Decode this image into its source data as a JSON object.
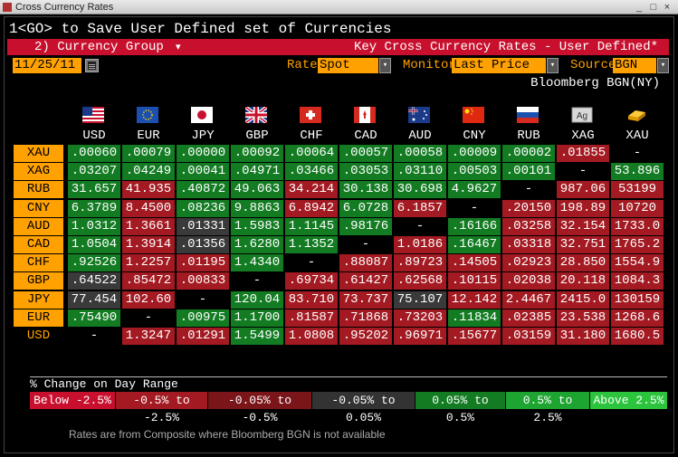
{
  "window": {
    "title": "Cross Currency Rates",
    "controls": [
      "_",
      "□",
      "×"
    ]
  },
  "command_line": "1<GO> to Save User Defined set of Currencies",
  "header_bar": {
    "group_label": "2) Currency Group",
    "group_arrow": "▾",
    "key_title": "Key Cross Currency Rates - User Defined*"
  },
  "controls": {
    "date": "11/25/11",
    "rate_label": "Rate",
    "rate_value": "Spot",
    "monitor_label": "Monitor",
    "monitor_value": "Last Price w/",
    "source_label": "Source",
    "source_value": "BGN",
    "dropdown_glyph": "▾"
  },
  "source_note": "Bloomberg BGN(NY)",
  "columns": [
    "USD",
    "EUR",
    "JPY",
    "GBP",
    "CHF",
    "CAD",
    "AUD",
    "CNY",
    "RUB",
    "XAG",
    "XAU"
  ],
  "column_icons": [
    "us-flag-icon",
    "eu-flag-icon",
    "jp-flag-icon",
    "gb-flag-icon",
    "ch-flag-icon",
    "ca-flag-icon",
    "au-flag-icon",
    "cn-flag-icon",
    "ru-flag-icon",
    "silver-bar-icon",
    "gold-bar-icon"
  ],
  "xag_icon_text": "Ag",
  "rows": [
    {
      "label": "XAU",
      "values": [
        ".00060",
        ".00079",
        ".00000",
        ".00092",
        ".00064",
        ".00057",
        ".00058",
        ".00009",
        ".00002",
        ".01855",
        "-"
      ],
      "colors": [
        "g",
        "g",
        "g",
        "g",
        "g",
        "g",
        "g",
        "g",
        "g",
        "r",
        "n"
      ]
    },
    {
      "label": "XAG",
      "values": [
        ".03207",
        ".04249",
        ".00041",
        ".04971",
        ".03466",
        ".03053",
        ".03110",
        ".00503",
        ".00101",
        "-",
        "53.896"
      ],
      "colors": [
        "g",
        "g",
        "g",
        "g",
        "g",
        "g",
        "g",
        "g",
        "g",
        "n",
        "g"
      ]
    },
    {
      "label": "RUB",
      "values": [
        "31.657",
        "41.935",
        ".40872",
        "49.063",
        "34.214",
        "30.138",
        "30.698",
        "4.9627",
        "-",
        "987.06",
        "53199"
      ],
      "colors": [
        "g",
        "r",
        "g",
        "g",
        "r",
        "g",
        "g",
        "g",
        "n",
        "r",
        "r"
      ]
    },
    {
      "label": "CNY",
      "values": [
        "6.3789",
        "8.4500",
        ".08236",
        "9.8863",
        "6.8942",
        "6.0728",
        "6.1857",
        "-",
        ".20150",
        "198.89",
        "10720"
      ],
      "colors": [
        "g",
        "r",
        "g",
        "g",
        "r",
        "g",
        "r",
        "n",
        "r",
        "r",
        "r"
      ]
    },
    {
      "label": "AUD",
      "values": [
        "1.0312",
        "1.3661",
        ".01331",
        "1.5983",
        "1.1145",
        ".98176",
        "-",
        ".16166",
        ".03258",
        "32.154",
        "1733.0"
      ],
      "colors": [
        "g",
        "r",
        "d",
        "g",
        "g",
        "g",
        "n",
        "g",
        "r",
        "r",
        "r"
      ]
    },
    {
      "label": "CAD",
      "values": [
        "1.0504",
        "1.3914",
        ".01356",
        "1.6280",
        "1.1352",
        "-",
        "1.0186",
        ".16467",
        ".03318",
        "32.751",
        "1765.2"
      ],
      "colors": [
        "g",
        "r",
        "d",
        "g",
        "g",
        "n",
        "r",
        "g",
        "r",
        "r",
        "r"
      ]
    },
    {
      "label": "CHF",
      "values": [
        ".92526",
        "1.2257",
        ".01195",
        "1.4340",
        "-",
        ".88087",
        ".89723",
        ".14505",
        ".02923",
        "28.850",
        "1554.9"
      ],
      "colors": [
        "g",
        "r",
        "r",
        "g",
        "n",
        "r",
        "r",
        "r",
        "r",
        "r",
        "r"
      ]
    },
    {
      "label": "GBP",
      "values": [
        ".64522",
        ".85472",
        ".00833",
        "-",
        ".69734",
        ".61427",
        ".62568",
        ".10115",
        ".02038",
        "20.118",
        "1084.3"
      ],
      "colors": [
        "d",
        "r",
        "r",
        "n",
        "r",
        "r",
        "r",
        "r",
        "r",
        "r",
        "r"
      ]
    },
    {
      "label": "JPY",
      "values": [
        "77.454",
        "102.60",
        "-",
        "120.04",
        "83.710",
        "73.737",
        "75.107",
        "12.142",
        "2.4467",
        "2415.0",
        "130159"
      ],
      "colors": [
        "d",
        "r",
        "n",
        "g",
        "r",
        "r",
        "d",
        "r",
        "r",
        "r",
        "r"
      ]
    },
    {
      "label": "EUR",
      "values": [
        ".75490",
        "-",
        ".00975",
        "1.1700",
        ".81587",
        ".71868",
        ".73203",
        ".11834",
        ".02385",
        "23.538",
        "1268.6"
      ],
      "colors": [
        "g",
        "n",
        "g",
        "g",
        "r",
        "r",
        "r",
        "g",
        "r",
        "r",
        "r"
      ]
    },
    {
      "label": "USD",
      "values": [
        "-",
        "1.3247",
        ".01291",
        "1.5499",
        "1.0808",
        ".95202",
        ".96971",
        ".15677",
        ".03159",
        "31.180",
        "1680.5"
      ],
      "colors": [
        "n",
        "r",
        "r",
        "g",
        "r",
        "r",
        "r",
        "r",
        "r",
        "r",
        "r"
      ]
    }
  ],
  "cell_colors": {
    "g": "#137c23",
    "r": "#a31a22",
    "d": "#3a3a3a",
    "n": "#000000"
  },
  "legend": {
    "title": "% Change on Day Range",
    "segments": [
      {
        "label": "Below -2.5%",
        "color": "#c8102e"
      },
      {
        "label": "-0.5% to -2.5%",
        "color": "#a31a22"
      },
      {
        "label": "-0.05% to -0.5%",
        "color": "#7a1519"
      },
      {
        "label": "-0.05% to 0.05%",
        "color": "#333333"
      },
      {
        "label": "0.05% to 0.5%",
        "color": "#137c23"
      },
      {
        "label": "0.5% to 2.5%",
        "color": "#1ea430"
      },
      {
        "label": "Above 2.5%",
        "color": "#2bc43c"
      }
    ]
  },
  "footnote": "Rates are from Composite where Bloomberg BGN is not available",
  "colors": {
    "accent_orange": "#ffa100",
    "header_red": "#c8102e"
  }
}
